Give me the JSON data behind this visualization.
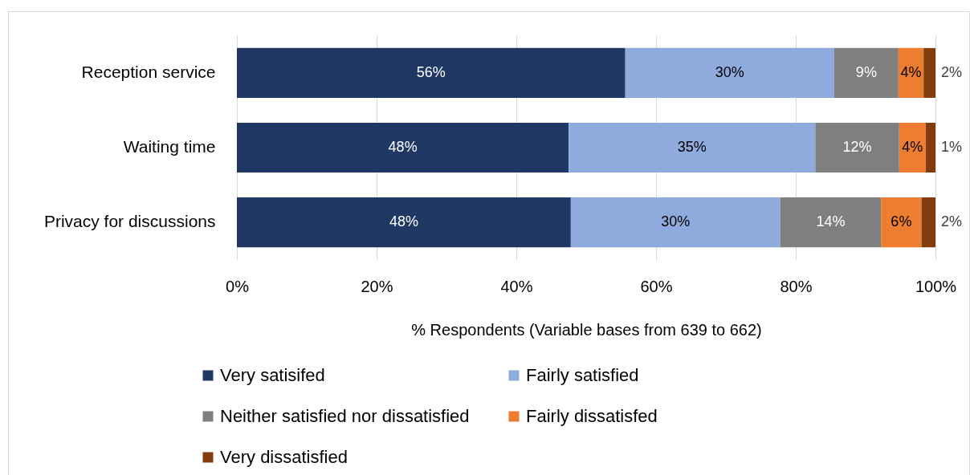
{
  "chart_data": {
    "type": "bar",
    "orientation": "horizontal",
    "stacked": true,
    "categories": [
      "Reception service",
      "Waiting time",
      "Privacy for discussions"
    ],
    "series": [
      {
        "name": "Very satisifed",
        "color": "#203864",
        "values": [
          55.6,
          47.5,
          47.8
        ],
        "value_labels": [
          "56%",
          "48%",
          "48%"
        ]
      },
      {
        "name": "Fairly satisfied",
        "color": "#8faadc",
        "values": [
          29.9,
          35.3,
          30.0
        ],
        "value_labels": [
          "30%",
          "35%",
          "30%"
        ]
      },
      {
        "name": "Neither satisfied nor dissatisfied",
        "color": "#7f7f7f",
        "values": [
          9.2,
          12.0,
          14.4
        ],
        "value_labels": [
          "9%",
          "12%",
          "14%"
        ]
      },
      {
        "name": "Fairly dissatisfed",
        "color": "#ed7d31",
        "values": [
          3.6,
          3.8,
          5.8
        ],
        "value_labels": [
          "4%",
          "4%",
          "6%"
        ]
      },
      {
        "name": "Very dissatisfied",
        "color": "#843c0c",
        "values": [
          1.7,
          1.4,
          2.0
        ],
        "value_labels": [
          "2%",
          "1%",
          "2%"
        ]
      }
    ],
    "xlabel": "% Respondents (Variable bases from 639 to 662)",
    "xlim": [
      0,
      100
    ],
    "xticks": [
      {
        "value": 0,
        "label": "0%"
      },
      {
        "value": 20,
        "label": "20%"
      },
      {
        "value": 40,
        "label": "40%"
      },
      {
        "value": 60,
        "label": "60%"
      },
      {
        "value": 80,
        "label": "80%"
      },
      {
        "value": 100,
        "label": "100%"
      }
    ],
    "grid": "x",
    "legend": "bottom"
  }
}
